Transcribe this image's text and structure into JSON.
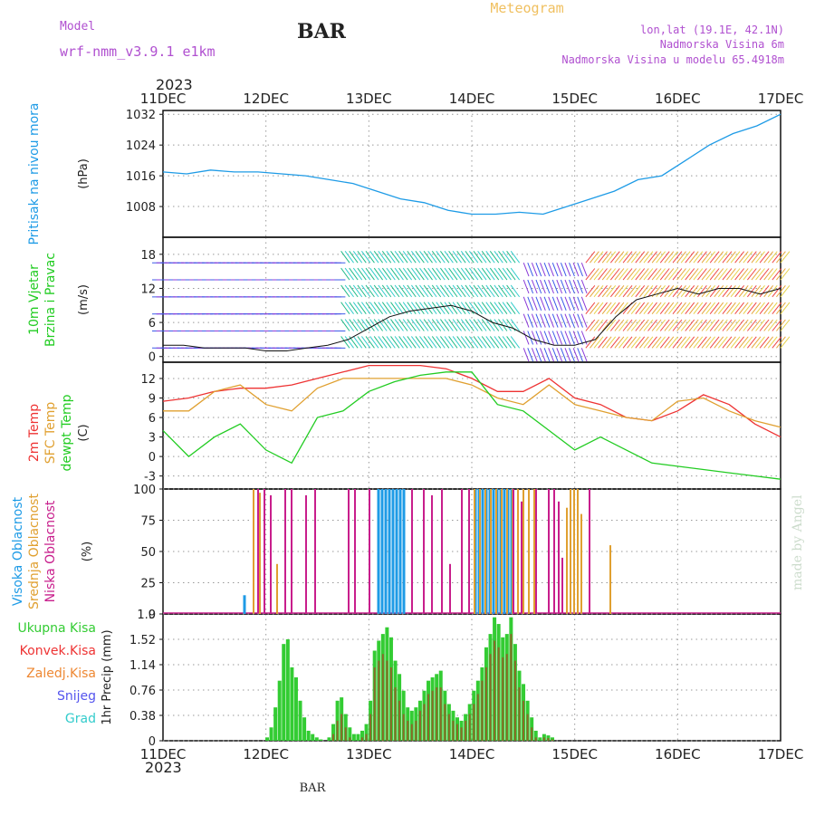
{
  "header": {
    "model_label": "Model",
    "model_name": "wrf-nmm_v3.9.1  e1km",
    "station": "BAR",
    "title": "Meteogram",
    "lonlat": "lon,lat (19.1E, 42.1N)",
    "elev": "Nadmorska Visina 6m",
    "model_elev": "Nadmorska Visina u modelu 65.4918m",
    "footer_station": "BAR",
    "credit": "made by Angel",
    "year": "2023"
  },
  "colors": {
    "pressure": "#1e9be6",
    "wind_label": "#22cc22",
    "temp2m": "#ee3333",
    "sfc": "#e0a030",
    "dewpt": "#22cc22",
    "high_cloud": "#1e9be6",
    "mid_cloud": "#e0a030",
    "low_cloud": "#c81e8c",
    "rain_total": "#33cc33",
    "rain_conv": "#ee3333",
    "rain_frozen": "#ee8833",
    "snow": "#5555ee",
    "grad": "#33cccc",
    "header_purple": "#b050d0",
    "title_orange": "#f0c060"
  },
  "chart_data": [
    {
      "type": "line",
      "panel": "pressure",
      "x_ticks": [
        "11DEC",
        "12DEC",
        "13DEC",
        "14DEC",
        "15DEC",
        "16DEC",
        "17DEC"
      ],
      "ylabel": "Pritisak na nivou mora",
      "unit": "(hPa)",
      "yticks": [
        1008,
        1016,
        1024,
        1032
      ],
      "ylim": [
        1000,
        1033
      ],
      "series": [
        {
          "values": [
            1017,
            1016.5,
            1017.5,
            1017,
            1017,
            1016.5,
            1016,
            1015,
            1014,
            1012,
            1010,
            1009,
            1007,
            1006,
            1006,
            1006.5,
            1006,
            1008,
            1010,
            1012,
            1015,
            1016,
            1020,
            1024,
            1027,
            1029,
            1032
          ]
        }
      ]
    },
    {
      "type": "line",
      "panel": "wind",
      "ylabel": "10m Vjetar Brzina i Pravac",
      "unit": "(m/s)",
      "yticks": [
        0,
        6,
        12,
        18
      ],
      "ylim": [
        -1,
        21
      ],
      "series": [
        {
          "values": [
            2,
            2,
            1.5,
            1.5,
            1.5,
            1,
            1,
            1.5,
            2,
            3,
            5,
            7,
            8,
            8.5,
            9,
            8,
            6,
            5,
            3,
            2,
            2,
            3,
            7,
            10,
            11,
            12,
            11,
            12,
            12,
            11,
            12
          ]
        }
      ]
    },
    {
      "type": "line",
      "panel": "temperature",
      "unit": "(C)",
      "yticks": [
        -3,
        0,
        3,
        6,
        9,
        12
      ],
      "ylim": [
        -5,
        14.5
      ],
      "series": [
        {
          "name": "2m Temp",
          "values": [
            8.5,
            9,
            10,
            10.5,
            10.5,
            11,
            12,
            13,
            14,
            14,
            14,
            13.5,
            12,
            10,
            10,
            12,
            9,
            8,
            6,
            5.5,
            7,
            9.5,
            8,
            5,
            3
          ]
        },
        {
          "name": "SFC Temp",
          "values": [
            7,
            7,
            10,
            11,
            8,
            7,
            10.5,
            12,
            12,
            12,
            12,
            12,
            11,
            9,
            8,
            11,
            8,
            7,
            6,
            5.5,
            8.5,
            9,
            7,
            5.5,
            4.5
          ]
        },
        {
          "name": "dewpt Temp",
          "values": [
            4,
            0,
            3,
            5,
            1,
            -1,
            6,
            7,
            10,
            11.5,
            12.5,
            13,
            13,
            8,
            7,
            4,
            1,
            3,
            1,
            -1,
            -1.5,
            -2,
            -2.5,
            -3,
            -3.5
          ]
        }
      ]
    },
    {
      "type": "bar",
      "panel": "cloud",
      "unit": "(%)",
      "yticks": [
        0,
        25,
        50,
        75,
        100
      ],
      "ylim": [
        0,
        100
      ],
      "series": [
        {
          "name": "Visoka Oblacnost",
          "values": [
            15,
            100,
            100,
            100,
            100,
            100,
            100,
            100,
            100,
            100,
            100,
            100,
            100,
            100,
            100,
            100,
            100,
            100,
            100,
            100
          ]
        },
        {
          "name": "Srednja Oblacnost",
          "values": [
            100,
            97,
            40,
            100,
            100,
            100,
            100,
            100,
            100,
            100,
            100,
            100,
            100,
            100,
            100,
            85,
            100,
            100,
            100,
            80,
            55
          ]
        },
        {
          "name": "Niska Oblacnost",
          "values": [
            100,
            100,
            95,
            100,
            100,
            95,
            100,
            100,
            100,
            100,
            100,
            100,
            95,
            100,
            40,
            100,
            100,
            100,
            90,
            100,
            100,
            100,
            90,
            45,
            100
          ]
        }
      ]
    },
    {
      "type": "bar",
      "panel": "precip",
      "ylabel": "1hr Precip (mm)",
      "yticks": [
        "0",
        "0.38",
        "0.76",
        "1.14",
        "1.52",
        "1.9"
      ],
      "ylim": [
        0,
        1.9
      ],
      "legend": [
        "Ukupna Kisa",
        "Konvek.Kisa",
        "Zaledj.Kisa",
        "Snijeg",
        "Grad"
      ],
      "series": [
        {
          "name": "Ukupna Kisa",
          "values": [
            0.05,
            0.2,
            0.5,
            0.9,
            1.45,
            1.52,
            1.1,
            0.95,
            0.6,
            0.35,
            0.15,
            0.1,
            0.05,
            0.02,
            0,
            0.05,
            0.25,
            0.6,
            0.65,
            0.4,
            0.2,
            0.1,
            0.1,
            0.15,
            0.25,
            0.6,
            1.35,
            1.5,
            1.6,
            1.7,
            1.55,
            1.2,
            1.0,
            0.75,
            0.5,
            0.45,
            0.5,
            0.6,
            0.75,
            0.9,
            0.95,
            1.0,
            1.05,
            0.75,
            0.55,
            0.45,
            0.35,
            0.3,
            0.4,
            0.55,
            0.75,
            0.9,
            1.1,
            1.4,
            1.6,
            1.85,
            1.75,
            1.55,
            1.6,
            1.85,
            1.45,
            1.05,
            0.85,
            0.6,
            0.35,
            0.15,
            0.05,
            0.1,
            0.08,
            0.05
          ]
        },
        {
          "name": "Konvek.Kisa",
          "values": [
            0,
            0,
            0,
            0,
            0,
            0,
            0,
            0,
            0,
            0,
            0,
            0,
            0,
            0,
            0,
            0,
            0.1,
            0.3,
            0.4,
            0.2,
            0.05,
            0,
            0,
            0.05,
            0.1,
            0.4,
            1.1,
            1.2,
            1.3,
            1.2,
            1.1,
            0.8,
            0.6,
            0.4,
            0.3,
            0.25,
            0.3,
            0.45,
            0.55,
            0.7,
            0.75,
            0.8,
            0.8,
            0.55,
            0.4,
            0.3,
            0.25,
            0.2,
            0.3,
            0.4,
            0.55,
            0.7,
            0.9,
            1.1,
            1.3,
            1.5,
            1.4,
            1.25,
            1.3,
            1.6,
            1.2,
            0.8,
            0.6,
            0.4,
            0.2,
            0.05,
            0,
            0.05,
            0.04,
            0.02
          ]
        }
      ]
    }
  ]
}
